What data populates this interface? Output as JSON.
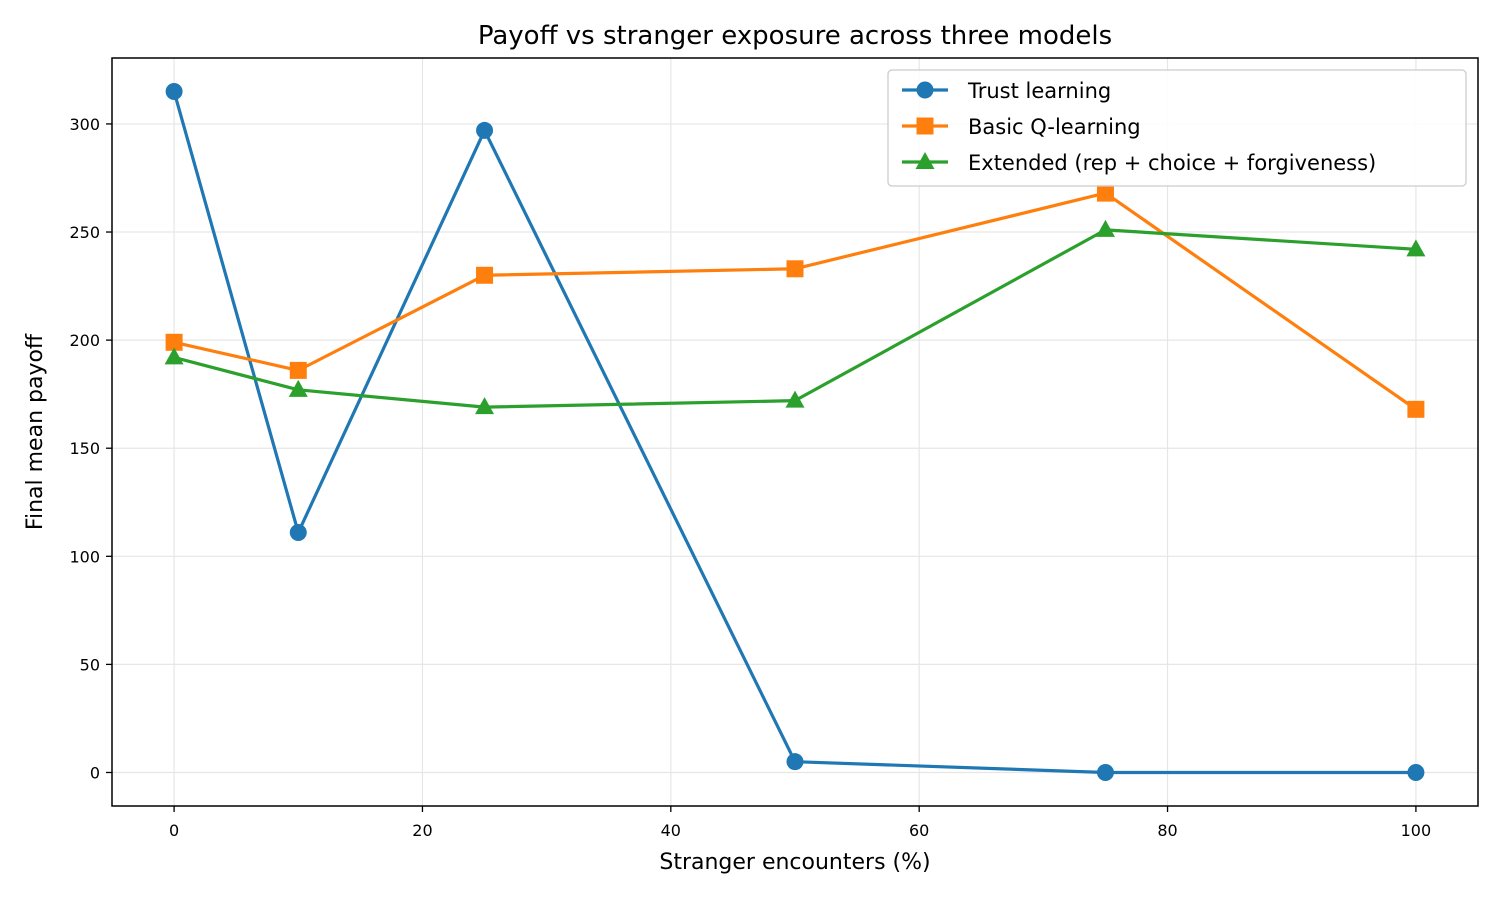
{
  "chart_data": {
    "type": "line",
    "title": "Payoff vs stranger exposure across three models",
    "xlabel": "Stranger encounters (%)",
    "ylabel": "Final mean payoff",
    "xlim": [
      -5,
      105
    ],
    "ylim": [
      -15.5,
      330.5
    ],
    "xticks": [
      0,
      20,
      40,
      60,
      80,
      100
    ],
    "yticks": [
      0,
      50,
      100,
      150,
      200,
      250,
      300
    ],
    "grid": true,
    "legend_position": "top-right",
    "series": [
      {
        "name": "Trust learning",
        "color": "#1f77b4",
        "marker": "circle",
        "x": [
          0,
          10,
          25,
          50,
          75,
          100
        ],
        "y": [
          315,
          111,
          297,
          5,
          0,
          0
        ]
      },
      {
        "name": "Basic Q-learning",
        "color": "#ff7f0e",
        "marker": "square",
        "x": [
          0,
          10,
          25,
          50,
          75,
          100
        ],
        "y": [
          199,
          186,
          230,
          233,
          268,
          168
        ]
      },
      {
        "name": "Extended (rep + choice + forgiveness)",
        "color": "#2ca02c",
        "marker": "triangle",
        "x": [
          0,
          10,
          25,
          50,
          75,
          100
        ],
        "y": [
          192,
          177,
          169,
          172,
          251,
          242
        ]
      }
    ]
  }
}
